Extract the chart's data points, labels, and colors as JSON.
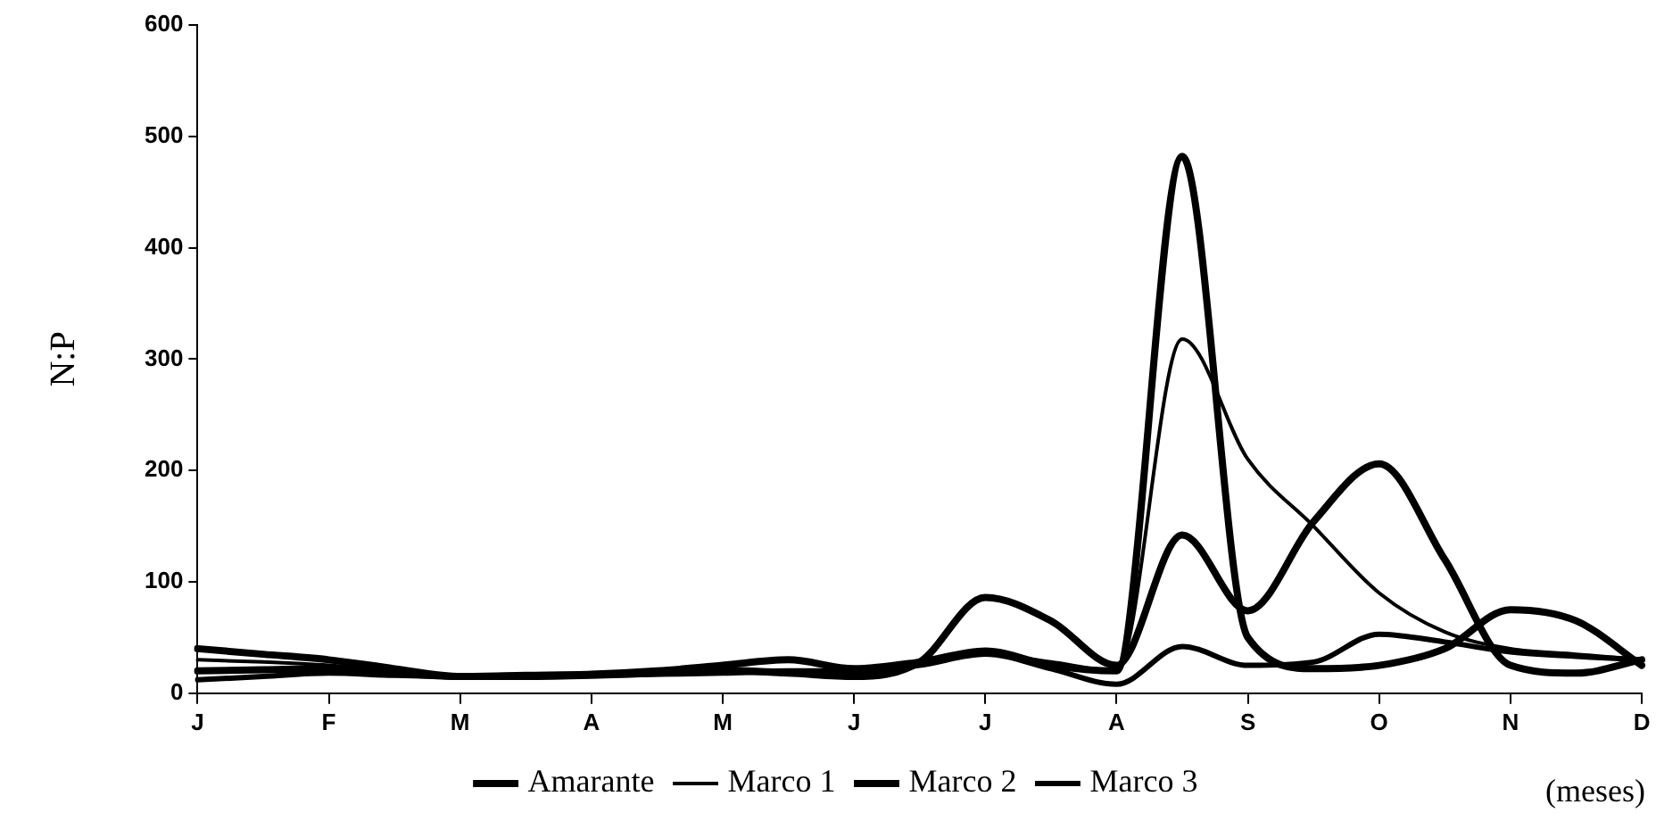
{
  "chart_data": {
    "type": "line",
    "xlabel": "(meses)",
    "ylabel": "N:P",
    "categories": [
      "J",
      null,
      "F",
      null,
      "M",
      null,
      "A",
      null,
      "M",
      null,
      "J",
      null,
      "J",
      null,
      "A",
      null,
      "S",
      null,
      "O",
      null,
      "N",
      null,
      "D"
    ],
    "ylim": [
      0,
      600
    ],
    "yticks": [
      0,
      100,
      200,
      300,
      400,
      500,
      600
    ],
    "grid": false,
    "legend": "bottom",
    "marker": "none",
    "line_style": "solid",
    "series": [
      {
        "name": "Amarante",
        "color": "#000000",
        "values": [
          40,
          35,
          30,
          22,
          15,
          16,
          17,
          20,
          25,
          30,
          22,
          28,
          38,
          25,
          20,
          482,
          50,
          22,
          25,
          40,
          75,
          65,
          25
        ]
      },
      {
        "name": "Marco 1",
        "color": "#000000",
        "values": [
          30,
          28,
          25,
          20,
          15,
          16,
          18,
          20,
          22,
          20,
          18,
          26,
          35,
          28,
          20,
          318,
          210,
          150,
          90,
          55,
          40,
          35,
          30
        ]
      },
      {
        "name": "Marco 2",
        "color": "#000000",
        "values": [
          20,
          21,
          22,
          18,
          15,
          15,
          16,
          18,
          20,
          18,
          15,
          28,
          86,
          65,
          25,
          142,
          74,
          154,
          206,
          120,
          25,
          18,
          30
        ]
      },
      {
        "name": "Marco 3",
        "color": "#000000",
        "values": [
          12,
          15,
          18,
          16,
          15,
          15,
          16,
          17,
          18,
          20,
          20,
          25,
          35,
          22,
          8,
          42,
          25,
          28,
          53,
          46,
          37,
          33,
          30
        ]
      }
    ]
  }
}
